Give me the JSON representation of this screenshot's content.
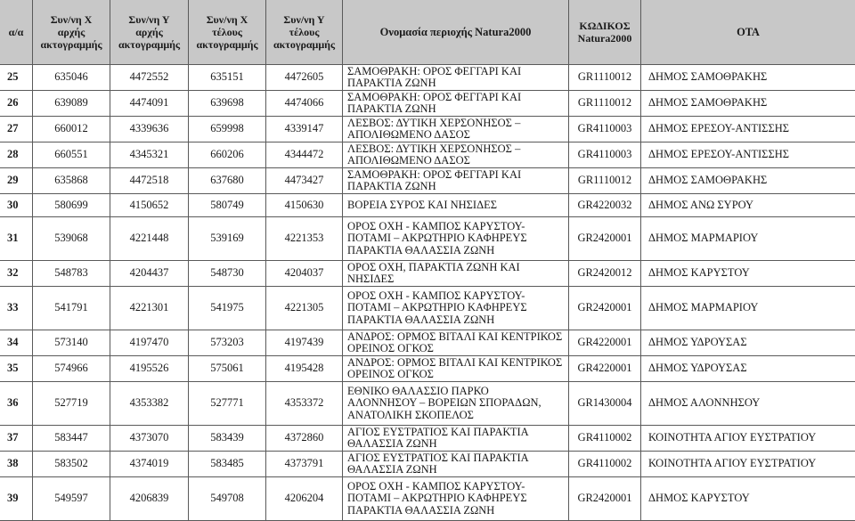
{
  "table": {
    "headers": [
      "α/α",
      "Συν/νη Χ\nαρχής\nακτογραμμής",
      "Συν/νη Υ\nαρχής\nακτογραμμής",
      "Συν/νη Χ\nτέλους\nακτογραμμής",
      "Συν/νη Υ\nτέλους\nακτογραμμής",
      "Ονομασία περιοχής Natura2000",
      "ΚΩΔΙΚΟΣ\nNatura2000",
      "ΟΤΑ"
    ],
    "rows": [
      {
        "aa": "25",
        "x_start": "635046",
        "y_start": "4472552",
        "x_end": "635151",
        "y_end": "4472605",
        "name": "ΣΑΜΟΘΡΑΚΗ: ΟΡΟΣ ΦΕΓΓΑΡΙ ΚΑΙ\nΠΑΡΑΚΤΙΑ ΖΩΝΗ",
        "code": "GR1110012",
        "ota": "ΔΗΜΟΣ ΣΑΜΟΘΡΑΚΗΣ"
      },
      {
        "aa": "26",
        "x_start": "639089",
        "y_start": "4474091",
        "x_end": "639698",
        "y_end": "4474066",
        "name": "ΣΑΜΟΘΡΑΚΗ: ΟΡΟΣ ΦΕΓΓΑΡΙ ΚΑΙ\nΠΑΡΑΚΤΙΑ ΖΩΝΗ",
        "code": "GR1110012",
        "ota": "ΔΗΜΟΣ ΣΑΜΟΘΡΑΚΗΣ"
      },
      {
        "aa": "27",
        "x_start": "660012",
        "y_start": "4339636",
        "x_end": "659998",
        "y_end": "4339147",
        "name": "ΛΕΣΒΟΣ: ΔΥΤΙΚΗ ΧΕΡΣΟΝΗΣΟΣ –\nΑΠΟΛΙΘΩΜΕΝΟ ΔΑΣΟΣ",
        "code": "GR4110003",
        "ota": "ΔΗΜΟΣ ΕΡΕΣΟΥ-ΑΝΤΙΣΣΗΣ"
      },
      {
        "aa": "28",
        "x_start": "660551",
        "y_start": "4345321",
        "x_end": "660206",
        "y_end": "4344472",
        "name": "ΛΕΣΒΟΣ: ΔΥΤΙΚΗ ΧΕΡΣΟΝΗΣΟΣ –\nΑΠΟΛΙΘΩΜΕΝΟ ΔΑΣΟΣ",
        "code": "GR4110003",
        "ota": "ΔΗΜΟΣ ΕΡΕΣΟΥ-ΑΝΤΙΣΣΗΣ"
      },
      {
        "aa": "29",
        "x_start": "635868",
        "y_start": "4472518",
        "x_end": "637680",
        "y_end": "4473427",
        "name": "ΣΑΜΟΘΡΑΚΗ: ΟΡΟΣ ΦΕΓΓΑΡΙ ΚΑΙ\nΠΑΡΑΚΤΙΑ ΖΩΝΗ",
        "code": "GR1110012",
        "ota": "ΔΗΜΟΣ ΣΑΜΟΘΡΑΚΗΣ"
      },
      {
        "aa": "30",
        "x_start": "580699",
        "y_start": "4150652",
        "x_end": "580749",
        "y_end": "4150630",
        "name": "ΒΟΡΕΙΑ ΣΥΡΟΣ ΚΑΙ ΝΗΣΙΔΕΣ",
        "code": "GR4220032",
        "ota": "ΔΗΜΟΣ ΑΝΩ ΣΥΡΟΥ"
      },
      {
        "aa": "31",
        "x_start": "539068",
        "y_start": "4221448",
        "x_end": "539169",
        "y_end": "4221353",
        "name": "ΟΡΟΣ ΟΧΗ - ΚΑΜΠΟΣ ΚΑΡΥΣΤΟΥ-\nΠΟΤΑΜΙ – ΑΚΡΩΤΗΡΙΟ ΚΑΦΗΡΕΥΣ\nΠΑΡΑΚΤΙΑ ΘΑΛΑΣΣΙΑ ΖΩΝΗ",
        "code": "GR2420001",
        "ota": "ΔΗΜΟΣ ΜΑΡΜΑΡΙΟΥ"
      },
      {
        "aa": "32",
        "x_start": "548783",
        "y_start": "4204437",
        "x_end": "548730",
        "y_end": "4204037",
        "name": "ΟΡΟΣ ΟΧΗ, ΠΑΡΑΚΤΙΑ ΖΩΝΗ ΚΑΙ\nΝΗΣΙΔΕΣ",
        "code": "GR2420012",
        "ota": "ΔΗΜΟΣ ΚΑΡΥΣΤΟΥ"
      },
      {
        "aa": "33",
        "x_start": "541791",
        "y_start": "4221301",
        "x_end": "541975",
        "y_end": "4221305",
        "name": "ΟΡΟΣ ΟΧΗ - ΚΑΜΠΟΣ ΚΑΡΥΣΤΟΥ-\nΠΟΤΑΜΙ – ΑΚΡΩΤΗΡΙΟ ΚΑΦΗΡΕΥΣ\nΠΑΡΑΚΤΙΑ ΘΑΛΑΣΣΙΑ ΖΩΝΗ",
        "code": "GR2420001",
        "ota": "ΔΗΜΟΣ ΜΑΡΜΑΡΙΟΥ"
      },
      {
        "aa": "34",
        "x_start": "573140",
        "y_start": "4197470",
        "x_end": "573203",
        "y_end": "4197439",
        "name": "ΑΝΔΡΟΣ: ΟΡΜΟΣ ΒΙΤΑΛΙ ΚΑΙ ΚΕΝΤΡΙΚΟΣ\nΟΡΕΙΝΟΣ ΟΓΚΟΣ",
        "code": "GR4220001",
        "ota": "ΔΗΜΟΣ ΥΔΡΟΥΣΑΣ"
      },
      {
        "aa": "35",
        "x_start": "574966",
        "y_start": "4195526",
        "x_end": "575061",
        "y_end": "4195428",
        "name": "ΑΝΔΡΟΣ: ΟΡΜΟΣ ΒΙΤΑΛΙ ΚΑΙ ΚΕΝΤΡΙΚΟΣ\nΟΡΕΙΝΟΣ ΟΓΚΟΣ",
        "code": "GR4220001",
        "ota": "ΔΗΜΟΣ ΥΔΡΟΥΣΑΣ"
      },
      {
        "aa": "36",
        "x_start": "527719",
        "y_start": "4353382",
        "x_end": "527771",
        "y_end": "4353372",
        "name": "ΕΘΝΙΚΟ ΘΑΛΑΣΣΙΟ ΠΑΡΚΟ\nΑΛΟΝΝΗΣΟΥ – ΒΟΡΕΙΩΝ ΣΠΟΡΑΔΩΝ,\nΑΝΑΤΟΛΙΚΗ ΣΚΟΠΕΛΟΣ",
        "code": "GR1430004",
        "ota": "ΔΗΜΟΣ ΑΛΟΝΝΗΣΟΥ"
      },
      {
        "aa": "37",
        "x_start": "583447",
        "y_start": "4373070",
        "x_end": "583439",
        "y_end": "4372860",
        "name": "ΑΓΙΟΣ ΕΥΣΤΡΑΤΙΟΣ ΚΑΙ ΠΑΡΑΚΤΙΑ\nΘΑΛΑΣΣΙΑ ΖΩΝΗ",
        "code": "GR4110002",
        "ota": "ΚΟΙΝΟΤΗΤΑ ΑΓΙΟΥ ΕΥΣΤΡΑΤΙΟΥ"
      },
      {
        "aa": "38",
        "x_start": "583502",
        "y_start": "4374019",
        "x_end": "583485",
        "y_end": "4373791",
        "name": "ΑΓΙΟΣ ΕΥΣΤΡΑΤΙΟΣ ΚΑΙ ΠΑΡΑΚΤΙΑ\nΘΑΛΑΣΣΙΑ ΖΩΝΗ",
        "code": "GR4110002",
        "ota": "ΚΟΙΝΟΤΗΤΑ ΑΓΙΟΥ ΕΥΣΤΡΑΤΙΟΥ"
      },
      {
        "aa": "39",
        "x_start": "549597",
        "y_start": "4206839",
        "x_end": "549708",
        "y_end": "4206204",
        "name": "ΟΡΟΣ ΟΧΗ - ΚΑΜΠΟΣ ΚΑΡΥΣΤΟΥ-\nΠΟΤΑΜΙ – ΑΚΡΩΤΗΡΙΟ ΚΑΦΗΡΕΥΣ\nΠΑΡΑΚΤΙΑ ΘΑΛΑΣΣΙΑ ΖΩΝΗ",
        "code": "GR2420001",
        "ota": "ΔΗΜΟΣ ΚΑΡΥΣΤΟΥ"
      }
    ]
  }
}
